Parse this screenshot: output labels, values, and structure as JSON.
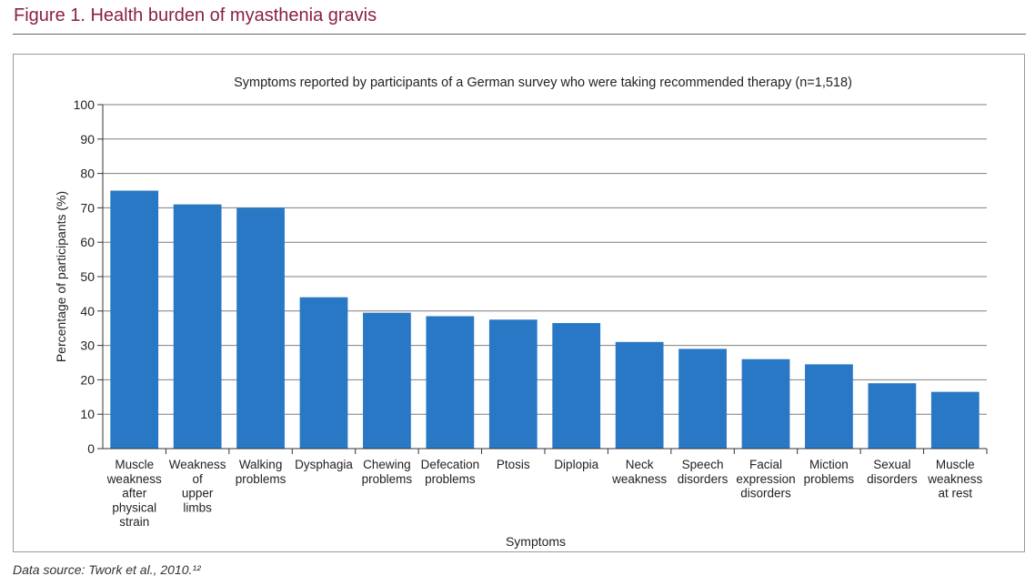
{
  "figure_title": "Figure 1. Health burden of myasthenia gravis",
  "source_note": "Data source: Twork et al., 2010.¹²",
  "colors": {
    "title": "#8a1f47",
    "bar": "#2878c6",
    "grid": "#7f7f7f"
  },
  "chart_data": {
    "type": "bar",
    "title": "Symptoms reported by participants of a German survey who were taking recommended therapy (n=1,518)",
    "xlabel": "Symptoms",
    "ylabel": "Percentage of participants (%)",
    "ylim": [
      0,
      100
    ],
    "yticks": [
      0,
      10,
      20,
      30,
      40,
      50,
      60,
      70,
      80,
      90,
      100
    ],
    "grid": true,
    "categories": [
      [
        "Muscle",
        "weakness",
        "after",
        "physical",
        "strain"
      ],
      [
        "Weakness",
        "of",
        "upper",
        "limbs"
      ],
      [
        "Walking",
        "problems"
      ],
      [
        "Dysphagia"
      ],
      [
        "Chewing",
        "problems"
      ],
      [
        "Defecation",
        "problems"
      ],
      [
        "Ptosis"
      ],
      [
        "Diplopia"
      ],
      [
        "Neck",
        "weakness"
      ],
      [
        "Speech",
        "disorders"
      ],
      [
        "Facial",
        "expression",
        "disorders"
      ],
      [
        "Miction",
        "problems"
      ],
      [
        "Sexual",
        "disorders"
      ],
      [
        "Muscle",
        "weakness",
        "at rest"
      ]
    ],
    "values": [
      75,
      71,
      70,
      44,
      39.5,
      38.5,
      37.5,
      36.5,
      31,
      29,
      26,
      24.5,
      19,
      16.5
    ]
  }
}
